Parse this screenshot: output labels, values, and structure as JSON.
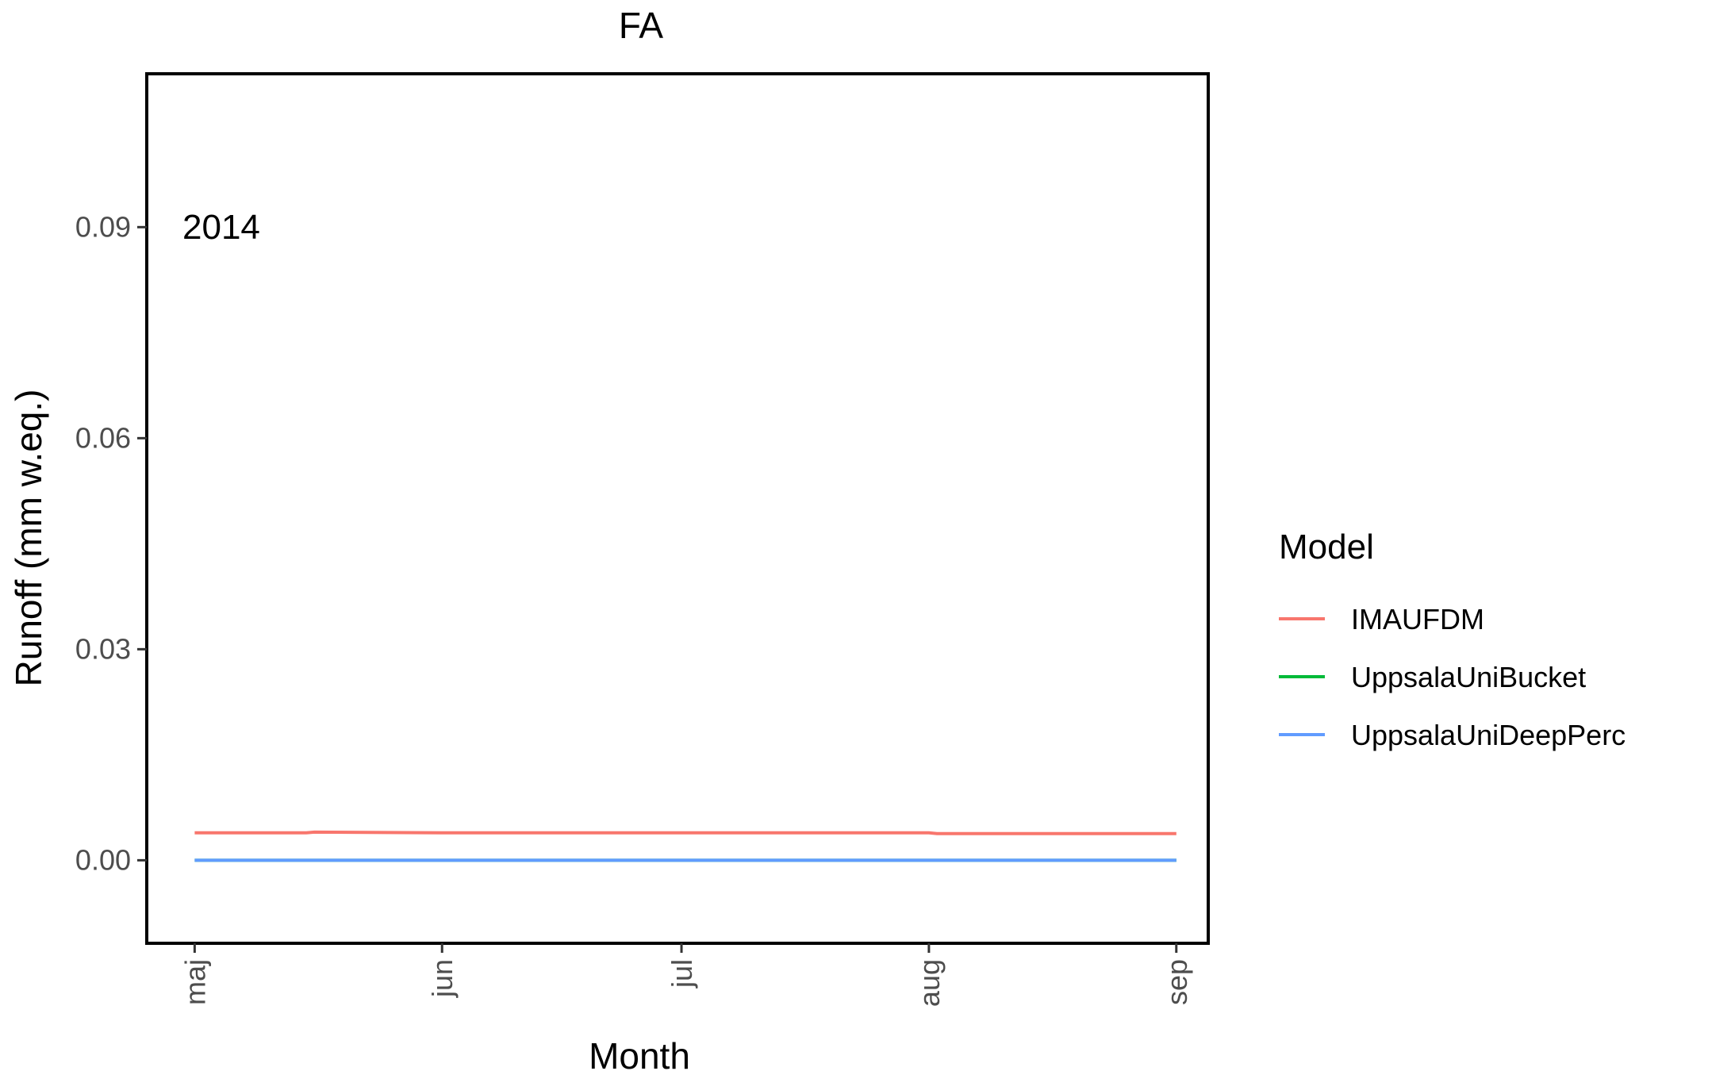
{
  "chart_data": {
    "type": "line",
    "title": "FA",
    "xlabel": "Month",
    "ylabel": "Runoff (mm w.eq.)",
    "annotation": "2014",
    "x_ticks": [
      "maj",
      "jun",
      "jul",
      "aug",
      "sep"
    ],
    "x_tick_dates": [
      "2014-05-01",
      "2014-06-01",
      "2014-07-01",
      "2014-08-01",
      "2014-09-01"
    ],
    "xlim": [
      "2014-04-25",
      "2014-09-05"
    ],
    "y_ticks": [
      "0.00",
      "0.03",
      "0.06",
      "0.09"
    ],
    "y_tick_values": [
      0.0,
      0.03,
      0.06,
      0.09
    ],
    "ylim": [
      -0.0118,
      0.1118
    ],
    "grid": false,
    "legend": {
      "title": "Model",
      "placement": "right"
    },
    "series": [
      {
        "name": "IMAUFDM",
        "color": "#F8766D",
        "x": [
          "2014-05-01",
          "2014-05-15",
          "2014-05-16",
          "2014-06-01",
          "2014-07-01",
          "2014-08-01",
          "2014-08-02",
          "2014-09-01"
        ],
        "values": [
          0.0039,
          0.0039,
          0.004,
          0.0039,
          0.0039,
          0.0039,
          0.0038,
          0.0038
        ]
      },
      {
        "name": "UppsalaUniBucket",
        "color": "#00BA38",
        "x": [
          "2014-05-01",
          "2014-09-01"
        ],
        "values": [
          0.0,
          0.0
        ]
      },
      {
        "name": "UppsalaUniDeepPerc",
        "color": "#619CFF",
        "x": [
          "2014-05-01",
          "2014-09-01"
        ],
        "values": [
          0.0,
          0.0
        ]
      }
    ]
  }
}
